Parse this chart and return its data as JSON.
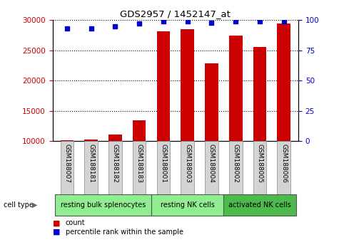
{
  "title": "GDS2957 / 1452147_at",
  "samples": [
    "GSM188007",
    "GSM188181",
    "GSM188182",
    "GSM188183",
    "GSM188001",
    "GSM188003",
    "GSM188004",
    "GSM188002",
    "GSM188005",
    "GSM188006"
  ],
  "counts": [
    10200,
    10300,
    11100,
    13400,
    28200,
    28500,
    22800,
    27400,
    25600,
    29500
  ],
  "percentiles": [
    93,
    93,
    95,
    97,
    99,
    99,
    98,
    99,
    99,
    99
  ],
  "groups": [
    {
      "label": "resting bulk splenocytes",
      "start": 0,
      "end": 4
    },
    {
      "label": "resting NK cells",
      "start": 4,
      "end": 7
    },
    {
      "label": "activated NK cells",
      "start": 7,
      "end": 10
    }
  ],
  "bar_color": "#CC0000",
  "dot_color": "#0000CC",
  "left_tick_color": "#CC0000",
  "right_tick_color": "#0000CC",
  "ylim_left": [
    10000,
    30000
  ],
  "ylim_right": [
    0,
    100
  ],
  "yticks_left": [
    10000,
    15000,
    20000,
    25000,
    30000
  ],
  "yticks_right": [
    0,
    25,
    50,
    75,
    100
  ],
  "bg_color": "#FFFFFF",
  "cell_type_label": "cell type",
  "legend_count_label": "count",
  "legend_pct_label": "percentile rank within the sample",
  "group_light_green": "#90EE90",
  "group_dark_green": "#4CBB4C",
  "label_box_color": "#D3D3D3"
}
